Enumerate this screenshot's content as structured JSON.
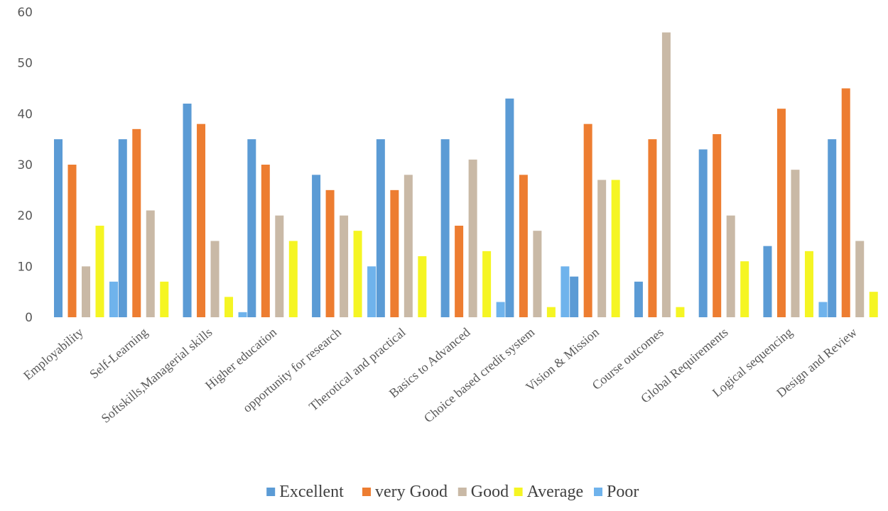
{
  "chart_data": {
    "type": "bar",
    "categories": [
      "Employability",
      "Self-Learning",
      "Softskills,Managerial skills",
      "Higher education",
      "opportunity for research",
      "Therotical and practical",
      "Basics to Advanced",
      "Choice based credit system",
      "Vision & Mission",
      "Course outcomes",
      "Global Requirements",
      "Logical sequencing",
      "Design and Review"
    ],
    "series": [
      {
        "name": "Excellent",
        "color": "#5b9bd5",
        "values": [
          35,
          35,
          42,
          35,
          28,
          35,
          35,
          43,
          8,
          7,
          33,
          14,
          35
        ]
      },
      {
        "name": "very Good",
        "color": "#ed7d31",
        "values": [
          30,
          37,
          38,
          30,
          25,
          25,
          18,
          28,
          38,
          35,
          36,
          41,
          45
        ]
      },
      {
        "name": "Good",
        "color": "#c9b9a6",
        "values": [
          10,
          21,
          15,
          20,
          20,
          28,
          31,
          17,
          27,
          56,
          20,
          29,
          15
        ]
      },
      {
        "name": "Average",
        "color": "#f5f523",
        "values": [
          18,
          7,
          4,
          15,
          17,
          12,
          13,
          2,
          27,
          2,
          11,
          13,
          5
        ]
      },
      {
        "name": "Poor",
        "color": "#6fb3ec",
        "values": [
          7,
          0,
          1,
          0,
          10,
          0,
          3,
          10,
          0,
          0,
          0,
          3,
          0
        ]
      }
    ],
    "ylim": [
      0,
      60
    ],
    "yticks": [
      0,
      10,
      20,
      30,
      40,
      50,
      60
    ],
    "grid": false,
    "legend_position": "bottom",
    "title": "",
    "xlabel": "",
    "ylabel": ""
  }
}
